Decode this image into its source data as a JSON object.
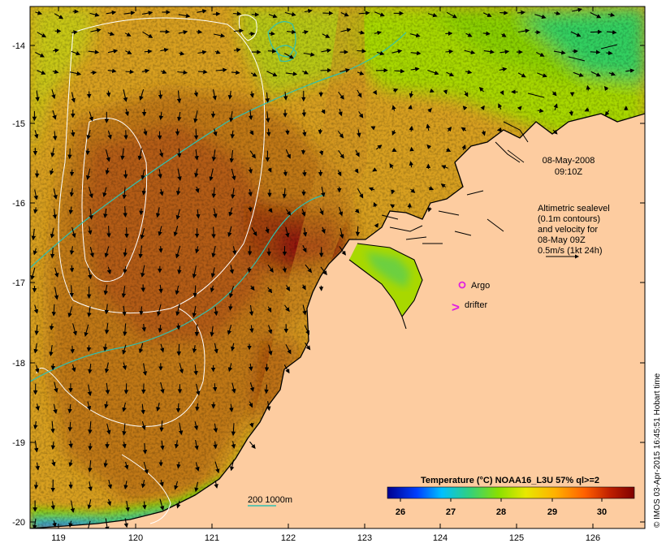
{
  "map": {
    "x_axis_ticks": [
      "119",
      "120",
      "121",
      "122",
      "123",
      "124",
      "125",
      "126"
    ],
    "y_axis_ticks": [
      "-14",
      "-15",
      "-16",
      "-17",
      "-18",
      "-19",
      "-20"
    ],
    "date_label": "08-May-2008",
    "time_label": "09:10Z",
    "altimetry_note": [
      "Altimetric sealevel",
      "(0.1m contours)",
      "and velocity for",
      "08-May 09Z",
      "0.5m/s (1kt 24h)"
    ],
    "argo_label": "Argo",
    "drifter_label": "drifter",
    "drifter_marker": ">",
    "depth_label": "200  1000m",
    "credit": "© IMOS 03-Apr-2015 16:45:51 Hobart time"
  },
  "legend": {
    "title": "Temperature (°C) NOAA16_L3U 57% ql>=2",
    "ticks": [
      "26",
      "27",
      "28",
      "29",
      "30"
    ],
    "colors": [
      "#00008f",
      "#0050ff",
      "#00c8ff",
      "#30d080",
      "#8ae000",
      "#e8e800",
      "#ffb000",
      "#ff6000",
      "#c02000",
      "#800000"
    ]
  },
  "colors": {
    "land": "#fdcca0",
    "warm_sea": "#b45c14",
    "mid_sea": "#d8a020",
    "cool_sea": "#a8d800",
    "green_sea": "#30d060",
    "contour_isobath": "#30c0b0",
    "sealevel_contour": "#ffffff",
    "argo": "#e020e0"
  }
}
